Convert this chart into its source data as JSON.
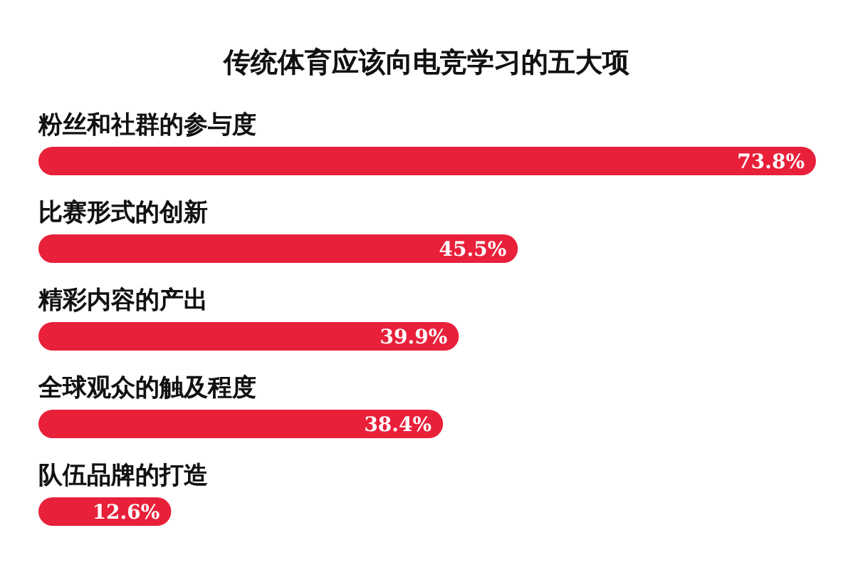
{
  "chart_data": {
    "type": "bar",
    "orientation": "horizontal",
    "title": "传统体育应该向电竞学习的五大项",
    "categories": [
      "粉丝和社群的参与度",
      "比赛形式的创新",
      "精彩内容的产出",
      "全球观众的触及程度",
      "队伍品牌的打造"
    ],
    "values": [
      73.8,
      45.5,
      39.9,
      38.4,
      12.6
    ],
    "value_labels": [
      "73.8%",
      "45.5%",
      "39.9%",
      "38.4%",
      "12.6%"
    ],
    "color": "#e8203a"
  }
}
